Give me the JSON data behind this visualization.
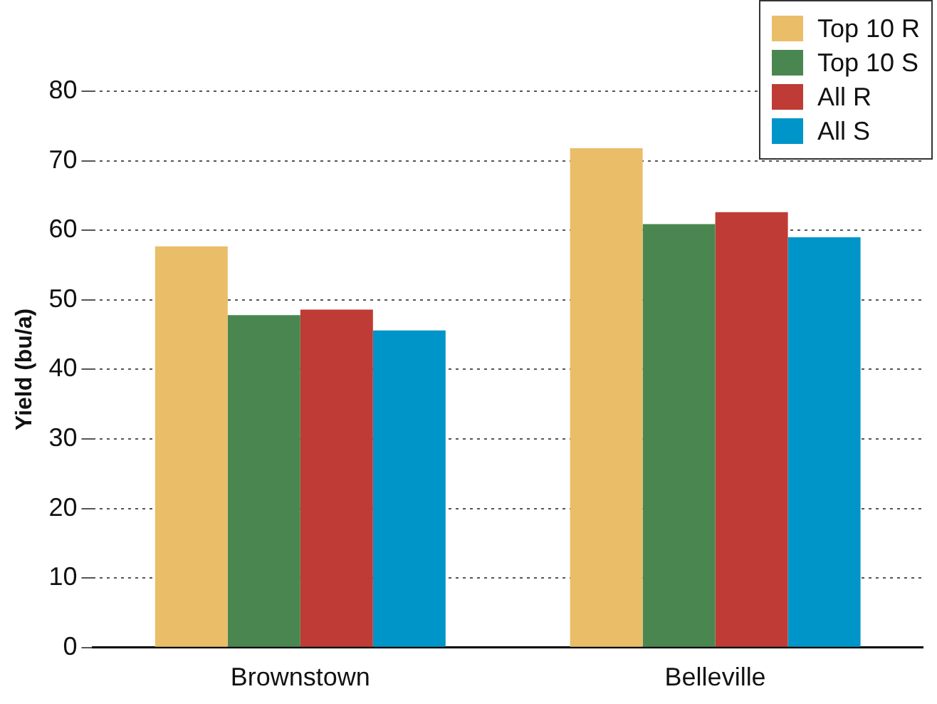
{
  "chart_data": {
    "type": "bar",
    "ylabel": "Yield (bu/a)",
    "categories": [
      "Brownstown",
      "Belleville"
    ],
    "series": [
      {
        "name": "Top 10 R",
        "color": "#eabd68",
        "values": [
          57.7,
          71.8
        ]
      },
      {
        "name": "Top 10 S",
        "color": "#4a8750",
        "values": [
          47.8,
          60.9
        ]
      },
      {
        "name": "All R",
        "color": "#bf3b35",
        "values": [
          48.6,
          62.6
        ]
      },
      {
        "name": "All S",
        "color": "#0095c8",
        "values": [
          45.6,
          59.0
        ]
      }
    ],
    "ylim": [
      0,
      80
    ],
    "yticks": [
      0,
      10,
      20,
      30,
      40,
      50,
      60,
      70,
      80
    ],
    "grid": "y",
    "legend": "top right"
  }
}
